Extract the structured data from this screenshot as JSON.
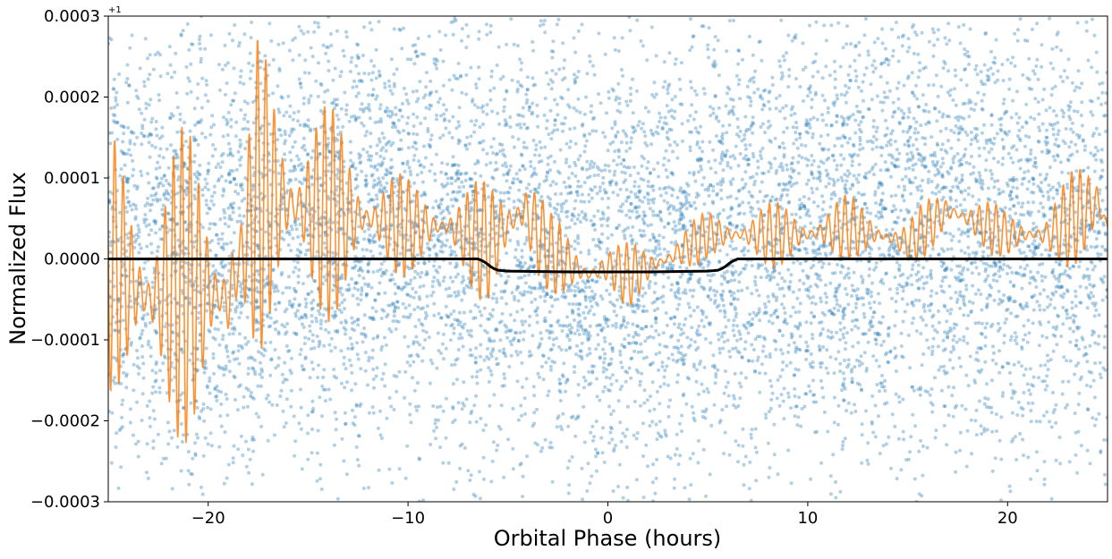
{
  "chart_data": {
    "type": "scatter",
    "title": "",
    "xlabel": "Orbital Phase (hours)",
    "ylabel": "Normalized Flux",
    "y_offset_label": "+1",
    "y_offset": 1,
    "xlim": [
      -25,
      25
    ],
    "ylim": [
      -0.0003,
      0.0003
    ],
    "x_ticks": [
      -20,
      -10,
      0,
      10,
      20
    ],
    "x_tick_labels": [
      "−20",
      "−10",
      "0",
      "10",
      "20"
    ],
    "y_ticks": [
      -0.0003,
      -0.0002,
      -0.0001,
      0.0,
      0.0001,
      0.0002,
      0.0003
    ],
    "y_tick_labels": [
      "−0.0003",
      "−0.0002",
      "−0.0001",
      "0.0000",
      "0.0001",
      "0.0002",
      "0.0003"
    ],
    "grid": false,
    "series": [
      {
        "kind": "scatter",
        "color": "#1f77b4",
        "opacity": 0.35,
        "approx_point_count": 22000,
        "noise_sigma": 0.00014,
        "trend_x": [
          -25,
          -20,
          -15,
          -10,
          -5,
          0,
          5,
          10,
          15,
          20,
          25
        ],
        "trend_y": [
          3e-05,
          0.0,
          4e-05,
          4e-05,
          3e-05,
          -1e-05,
          2e-05,
          3e-05,
          3e-05,
          3e-05,
          3e-05
        ]
      },
      {
        "kind": "line",
        "color": "#ff7f0e",
        "description_points_x": [
          -25,
          -23,
          -21,
          -19,
          -18.5,
          -17.5,
          -15,
          -12,
          -10,
          -8,
          -6,
          -4.2,
          -3,
          -1,
          0,
          1,
          3,
          5,
          7,
          10,
          12,
          15,
          17,
          20,
          22,
          24.5,
          25
        ],
        "description_points_y": [
          0.0,
          -5e-05,
          -3e-05,
          -5e-05,
          -1e-05,
          8e-05,
          6e-05,
          5e-05,
          4e-05,
          4e-05,
          2e-05,
          6e-05,
          1e-05,
          -2e-05,
          -1e-05,
          -2e-05,
          0.0,
          3e-05,
          3e-05,
          3e-05,
          4e-05,
          2e-05,
          6e-05,
          3e-05,
          3e-05,
          7e-05,
          4e-05
        ],
        "oscillation_amplitude": [
          0.00016,
          0.00018,
          0.0002,
          0.00018,
          4e-05,
          0.0002,
          0.00016,
          9e-05,
          6e-05,
          5e-05,
          8e-05,
          0.0001,
          5e-05,
          4e-05,
          3e-05,
          4e-05,
          3e-05,
          3e-05,
          4e-05,
          4e-05,
          4e-05,
          3e-05,
          4e-05,
          3e-05,
          4e-05,
          8e-05,
          4e-05
        ]
      },
      {
        "kind": "line",
        "color": "#000000",
        "x": [
          -25,
          -6.5,
          -6.3,
          -6.1,
          -5.9,
          -5.7,
          -5.5,
          -5.0,
          -2.0,
          0.0,
          2.0,
          5.0,
          5.5,
          5.7,
          5.9,
          6.1,
          6.3,
          6.5,
          25
        ],
        "y": [
          0.0,
          0.0,
          -2e-06,
          -5e-06,
          -9e-06,
          -1.2e-05,
          -1.4e-05,
          -1.5e-05,
          -1.6e-05,
          -1.6e-05,
          -1.6e-05,
          -1.5e-05,
          -1.4e-05,
          -1.2e-05,
          -9e-06,
          -5e-06,
          -2e-06,
          0.0,
          0.0
        ]
      }
    ]
  }
}
